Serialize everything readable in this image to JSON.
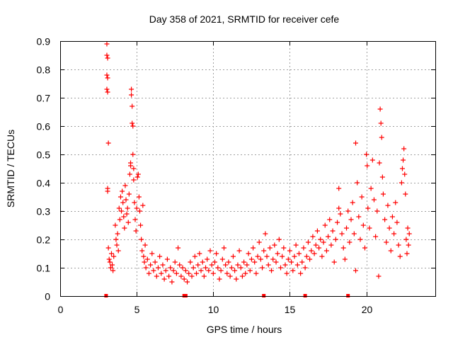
{
  "chart_data": {
    "type": "scatter",
    "title": "Day 358 of 2021, SRMTID for receiver cefe",
    "xlabel": "GPS time / hours",
    "ylabel": "SRMTID / TECUs",
    "xlim": [
      0,
      24.5
    ],
    "ylim": [
      0,
      0.9
    ],
    "x_ticks": [
      0,
      5,
      10,
      15,
      20
    ],
    "x_tick_labels": [
      "0",
      "5",
      "10",
      "15",
      "20"
    ],
    "y_ticks": [
      0,
      0.1,
      0.2,
      0.3,
      0.4,
      0.5,
      0.6,
      0.7,
      0.8,
      0.9
    ],
    "y_tick_labels": [
      "0",
      "0.1",
      "0.2",
      "0.3",
      "0.4",
      "0.5",
      "0.6",
      "0.7",
      "0.8",
      "0.9"
    ],
    "grid": true,
    "marker": "plus",
    "color": "#ff0000",
    "series": [
      {
        "name": "SRMTID",
        "points": [
          [
            3.05,
            0.89
          ],
          [
            3.05,
            0.85
          ],
          [
            3.1,
            0.84
          ],
          [
            3.05,
            0.78
          ],
          [
            3.1,
            0.77
          ],
          [
            3.05,
            0.73
          ],
          [
            3.1,
            0.72
          ],
          [
            3.15,
            0.54
          ],
          [
            3.1,
            0.38
          ],
          [
            3.1,
            0.37
          ],
          [
            3.15,
            0.17
          ],
          [
            3.2,
            0.13
          ],
          [
            3.25,
            0.12
          ],
          [
            3.3,
            0.1
          ],
          [
            3.35,
            0.15
          ],
          [
            3.4,
            0.11
          ],
          [
            3.45,
            0.09
          ],
          [
            3.5,
            0.14
          ],
          [
            3.6,
            0.25
          ],
          [
            3.65,
            0.2
          ],
          [
            3.7,
            0.18
          ],
          [
            3.75,
            0.22
          ],
          [
            3.8,
            0.16
          ],
          [
            3.85,
            0.31
          ],
          [
            3.9,
            0.27
          ],
          [
            3.95,
            0.35
          ],
          [
            4.0,
            0.3
          ],
          [
            4.05,
            0.37
          ],
          [
            4.1,
            0.33
          ],
          [
            4.15,
            0.28
          ],
          [
            4.2,
            0.24
          ],
          [
            4.25,
            0.39
          ],
          [
            4.3,
            0.34
          ],
          [
            4.35,
            0.29
          ],
          [
            4.4,
            0.31
          ],
          [
            4.45,
            0.26
          ],
          [
            4.5,
            0.36
          ],
          [
            4.55,
            0.43
          ],
          [
            4.6,
            0.47
          ],
          [
            4.6,
            0.46
          ],
          [
            4.65,
            0.73
          ],
          [
            4.65,
            0.71
          ],
          [
            4.7,
            0.67
          ],
          [
            4.7,
            0.61
          ],
          [
            4.75,
            0.6
          ],
          [
            4.75,
            0.5
          ],
          [
            4.8,
            0.45
          ],
          [
            4.8,
            0.41
          ],
          [
            4.85,
            0.33
          ],
          [
            4.9,
            0.27
          ],
          [
            4.95,
            0.23
          ],
          [
            5.0,
            0.31
          ],
          [
            5.05,
            0.42
          ],
          [
            5.1,
            0.43
          ],
          [
            5.15,
            0.35
          ],
          [
            5.2,
            0.3
          ],
          [
            5.25,
            0.25
          ],
          [
            5.3,
            0.2
          ],
          [
            5.35,
            0.16
          ],
          [
            5.4,
            0.32
          ],
          [
            5.45,
            0.14
          ],
          [
            5.5,
            0.12
          ],
          [
            5.55,
            0.18
          ],
          [
            5.6,
            0.1
          ],
          [
            5.7,
            0.13
          ],
          [
            5.8,
            0.08
          ],
          [
            5.9,
            0.11
          ],
          [
            6.0,
            0.15
          ],
          [
            6.1,
            0.09
          ],
          [
            6.2,
            0.12
          ],
          [
            6.3,
            0.07
          ],
          [
            6.4,
            0.1
          ],
          [
            6.5,
            0.14
          ],
          [
            6.6,
            0.08
          ],
          [
            6.7,
            0.11
          ],
          [
            6.8,
            0.06
          ],
          [
            6.9,
            0.09
          ],
          [
            7.0,
            0.13
          ],
          [
            7.1,
            0.07
          ],
          [
            7.2,
            0.1
          ],
          [
            7.3,
            0.05
          ],
          [
            7.4,
            0.09
          ],
          [
            7.5,
            0.12
          ],
          [
            7.6,
            0.08
          ],
          [
            7.7,
            0.17
          ],
          [
            7.8,
            0.11
          ],
          [
            7.9,
            0.07
          ],
          [
            8.0,
            0.1
          ],
          [
            8.1,
            0.06
          ],
          [
            8.2,
            0.09
          ],
          [
            8.3,
            0.05
          ],
          [
            8.4,
            0.08
          ],
          [
            8.5,
            0.12
          ],
          [
            8.6,
            0.07
          ],
          [
            8.7,
            0.1
          ],
          [
            8.8,
            0.14
          ],
          [
            8.9,
            0.08
          ],
          [
            9.0,
            0.11
          ],
          [
            9.1,
            0.15
          ],
          [
            9.2,
            0.09
          ],
          [
            9.3,
            0.12
          ],
          [
            9.4,
            0.07
          ],
          [
            9.5,
            0.1
          ],
          [
            9.6,
            0.13
          ],
          [
            9.7,
            0.09
          ],
          [
            9.8,
            0.16
          ],
          [
            9.9,
            0.11
          ],
          [
            10.0,
            0.08
          ],
          [
            10.1,
            0.12
          ],
          [
            10.2,
            0.15
          ],
          [
            10.3,
            0.1
          ],
          [
            10.4,
            0.06
          ],
          [
            10.5,
            0.09
          ],
          [
            10.6,
            0.13
          ],
          [
            10.7,
            0.17
          ],
          [
            10.8,
            0.11
          ],
          [
            10.9,
            0.08
          ],
          [
            11.0,
            0.12
          ],
          [
            11.1,
            0.07
          ],
          [
            11.2,
            0.1
          ],
          [
            11.3,
            0.14
          ],
          [
            11.4,
            0.09
          ],
          [
            11.5,
            0.06
          ],
          [
            11.6,
            0.11
          ],
          [
            11.7,
            0.16
          ],
          [
            11.8,
            0.1
          ],
          [
            11.9,
            0.07
          ],
          [
            12.0,
            0.12
          ],
          [
            12.1,
            0.08
          ],
          [
            12.2,
            0.11
          ],
          [
            12.3,
            0.15
          ],
          [
            12.4,
            0.09
          ],
          [
            12.5,
            0.13
          ],
          [
            12.6,
            0.17
          ],
          [
            12.7,
            0.12
          ],
          [
            12.8,
            0.08
          ],
          [
            12.9,
            0.14
          ],
          [
            13.0,
            0.19
          ],
          [
            13.1,
            0.13
          ],
          [
            13.2,
            0.1
          ],
          [
            13.3,
            0.16
          ],
          [
            13.4,
            0.22
          ],
          [
            13.5,
            0.14
          ],
          [
            13.6,
            0.11
          ],
          [
            13.7,
            0.17
          ],
          [
            13.8,
            0.09
          ],
          [
            13.9,
            0.13
          ],
          [
            14.0,
            0.18
          ],
          [
            14.1,
            0.12
          ],
          [
            14.2,
            0.15
          ],
          [
            14.3,
            0.2
          ],
          [
            14.4,
            0.1
          ],
          [
            14.5,
            0.14
          ],
          [
            14.6,
            0.17
          ],
          [
            14.7,
            0.11
          ],
          [
            14.8,
            0.08
          ],
          [
            14.9,
            0.13
          ],
          [
            15.0,
            0.16
          ],
          [
            15.1,
            0.12
          ],
          [
            15.2,
            0.09
          ],
          [
            15.3,
            0.14
          ],
          [
            15.4,
            0.18
          ],
          [
            15.5,
            0.11
          ],
          [
            15.6,
            0.15
          ],
          [
            15.7,
            0.08
          ],
          [
            15.8,
            0.12
          ],
          [
            15.9,
            0.17
          ],
          [
            16.0,
            0.1
          ],
          [
            16.1,
            0.14
          ],
          [
            16.2,
            0.19
          ],
          [
            16.3,
            0.13
          ],
          [
            16.4,
            0.16
          ],
          [
            16.5,
            0.21
          ],
          [
            16.6,
            0.15
          ],
          [
            16.7,
            0.18
          ],
          [
            16.8,
            0.23
          ],
          [
            16.9,
            0.17
          ],
          [
            17.0,
            0.2
          ],
          [
            17.1,
            0.14
          ],
          [
            17.2,
            0.19
          ],
          [
            17.3,
            0.25
          ],
          [
            17.4,
            0.16
          ],
          [
            17.5,
            0.21
          ],
          [
            17.6,
            0.27
          ],
          [
            17.7,
            0.18
          ],
          [
            17.8,
            0.23
          ],
          [
            17.9,
            0.12
          ],
          [
            18.0,
            0.2
          ],
          [
            18.1,
            0.26
          ],
          [
            18.2,
            0.31
          ],
          [
            18.2,
            0.38
          ],
          [
            18.3,
            0.29
          ],
          [
            18.4,
            0.22
          ],
          [
            18.5,
            0.17
          ],
          [
            18.6,
            0.13
          ],
          [
            18.7,
            0.24
          ],
          [
            18.8,
            0.3
          ],
          [
            18.9,
            0.19
          ],
          [
            19.0,
            0.27
          ],
          [
            19.1,
            0.33
          ],
          [
            19.2,
            0.22
          ],
          [
            19.3,
            0.09
          ],
          [
            19.3,
            0.54
          ],
          [
            19.4,
            0.4
          ],
          [
            19.5,
            0.28
          ],
          [
            19.6,
            0.2
          ],
          [
            19.7,
            0.35
          ],
          [
            19.8,
            0.25
          ],
          [
            19.9,
            0.17
          ],
          [
            20.0,
            0.5
          ],
          [
            20.05,
            0.46
          ],
          [
            20.1,
            0.31
          ],
          [
            20.2,
            0.24
          ],
          [
            20.3,
            0.38
          ],
          [
            20.4,
            0.48
          ],
          [
            20.5,
            0.34
          ],
          [
            20.6,
            0.21
          ],
          [
            20.7,
            0.3
          ],
          [
            20.8,
            0.07
          ],
          [
            20.85,
            0.47
          ],
          [
            20.9,
            0.66
          ],
          [
            20.95,
            0.61
          ],
          [
            21.0,
            0.56
          ],
          [
            21.05,
            0.42
          ],
          [
            21.1,
            0.36
          ],
          [
            21.2,
            0.27
          ],
          [
            21.3,
            0.19
          ],
          [
            21.4,
            0.32
          ],
          [
            21.5,
            0.24
          ],
          [
            21.6,
            0.16
          ],
          [
            21.7,
            0.28
          ],
          [
            21.8,
            0.22
          ],
          [
            21.9,
            0.33
          ],
          [
            22.0,
            0.26
          ],
          [
            22.1,
            0.18
          ],
          [
            22.2,
            0.14
          ],
          [
            22.3,
            0.4
          ],
          [
            22.35,
            0.45
          ],
          [
            22.4,
            0.48
          ],
          [
            22.45,
            0.52
          ],
          [
            22.5,
            0.43
          ],
          [
            22.55,
            0.36
          ],
          [
            22.6,
            0.2
          ],
          [
            22.65,
            0.15
          ],
          [
            22.7,
            0.24
          ],
          [
            22.75,
            0.18
          ],
          [
            22.8,
            0.22
          ]
        ]
      }
    ],
    "baseline_markers_x": [
      3.0,
      8.1,
      8.2,
      13.3,
      16.0,
      18.8
    ]
  }
}
